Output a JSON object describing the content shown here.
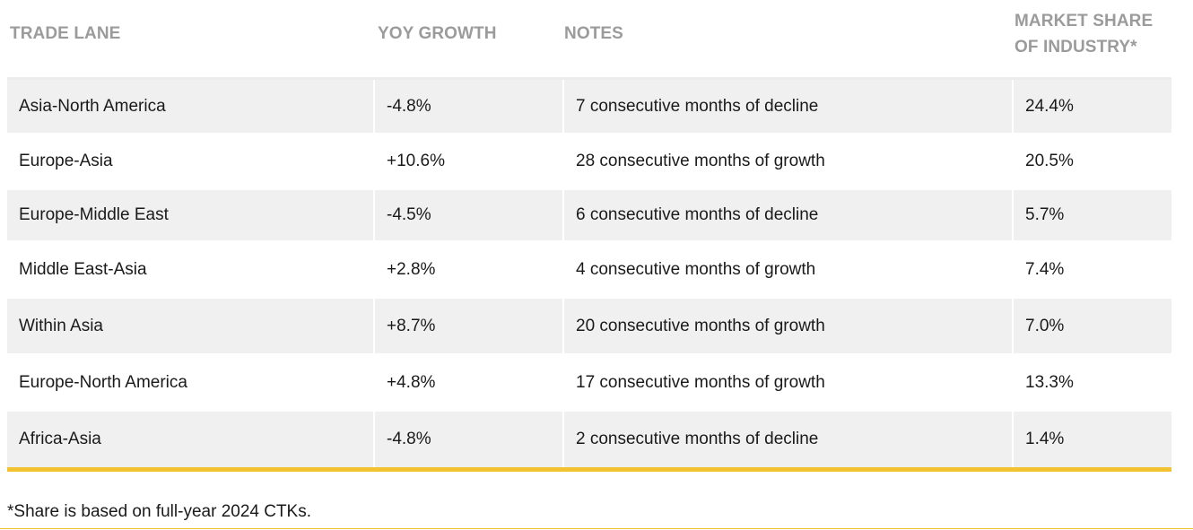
{
  "table": {
    "headers": {
      "lane": "TRADE LANE",
      "yoy": "YOY GROWTH",
      "notes": "NOTES",
      "share_line1": "MARKET SHARE",
      "share_line2": "OF INDUSTRY*"
    },
    "rows": [
      {
        "lane": "Asia-North America",
        "yoy": "-4.8%",
        "notes": "7 consecutive months of decline",
        "share": "24.4%"
      },
      {
        "lane": "Europe-Asia",
        "yoy": "+10.6%",
        "notes": "28 consecutive months of growth",
        "share": "20.5%"
      },
      {
        "lane": "Europe-Middle East",
        "yoy": "-4.5%",
        "notes": "6 consecutive months of decline",
        "share": "5.7%"
      },
      {
        "lane": "Middle East-Asia",
        "yoy": "+2.8%",
        "notes": "4 consecutive months of growth",
        "share": "7.4%"
      },
      {
        "lane": "Within Asia",
        "yoy": "+8.7%",
        "notes": "20 consecutive months of growth",
        "share": "7.0%"
      },
      {
        "lane": "Europe-North America",
        "yoy": "+4.8%",
        "notes": "17 consecutive months of growth",
        "share": "13.3%"
      },
      {
        "lane": "Africa-Asia",
        "yoy": "-4.8%",
        "notes": "2 consecutive months of decline",
        "share": "1.4%"
      }
    ]
  },
  "footnote": "*Share is based on full-year 2024 CTKs.",
  "colors": {
    "accent": "#f2c230",
    "header_text": "#9b9b9b",
    "row_shade": "#f0f0f0"
  }
}
